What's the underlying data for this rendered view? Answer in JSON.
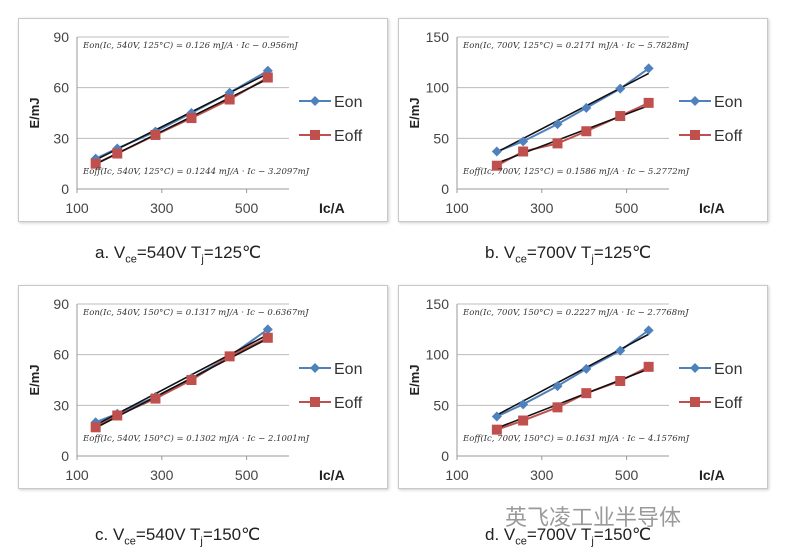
{
  "chart_data": [
    {
      "type": "line",
      "panel": "a",
      "caption": {
        "prefix": "a. V",
        "sub1": "ce",
        "mid": "=540V T",
        "sub2": "j",
        "suffix": "=125℃"
      },
      "xlabel": "Ic/A",
      "ylabel": "E/mJ",
      "xlim": [
        100,
        600
      ],
      "ylim": [
        0,
        90
      ],
      "xticks": [
        100,
        300,
        500
      ],
      "yticks": [
        0,
        30,
        60,
        90
      ],
      "grid": true,
      "legend": "right",
      "x": [
        144,
        195,
        285,
        370,
        460,
        550
      ],
      "series": [
        {
          "name": "Eon",
          "values": [
            18,
            24,
            34,
            45,
            57,
            70
          ],
          "color": "#4f81bd",
          "marker": "diamond"
        },
        {
          "name": "Eoff",
          "values": [
            15,
            21,
            32,
            42,
            53,
            66
          ],
          "color": "#c0504d",
          "marker": "square"
        }
      ],
      "fits": [
        {
          "slope": 0.126,
          "intercept": -0.956,
          "label": "Eon(Ic, 540V, 125°C) = 0.126 mJ/A · Ic − 0.956mJ"
        },
        {
          "slope": 0.1244,
          "intercept": -3.2097,
          "label": "Eoff(Ic, 540V, 125°C) = 0.1244 mJ/A · Ic − 3.2097mJ"
        }
      ]
    },
    {
      "type": "line",
      "panel": "b",
      "caption": {
        "prefix": "b. V",
        "sub1": "ce",
        "mid": "=700V T",
        "sub2": "j",
        "suffix": "=125℃"
      },
      "xlabel": "Ic/A",
      "ylabel": "E/mJ",
      "xlim": [
        100,
        600
      ],
      "ylim": [
        0,
        150
      ],
      "xticks": [
        100,
        300,
        500
      ],
      "yticks": [
        0,
        50,
        100,
        150
      ],
      "grid": true,
      "legend": "right",
      "x": [
        194,
        256,
        337,
        405,
        485,
        552
      ],
      "series": [
        {
          "name": "Eon",
          "values": [
            37,
            47,
            64,
            80,
            99,
            119
          ],
          "color": "#4f81bd",
          "marker": "diamond"
        },
        {
          "name": "Eoff",
          "values": [
            23,
            37,
            45,
            57,
            72,
            85
          ],
          "color": "#c0504d",
          "marker": "square"
        }
      ],
      "fits": [
        {
          "slope": 0.2171,
          "intercept": -5.7828,
          "label": "Eon(Ic, 700V, 125°C) = 0.2171 mJ/A · Ic − 5.7828mJ"
        },
        {
          "slope": 0.1586,
          "intercept": -5.2772,
          "label": "Eoff(Ic, 700V, 125°C) = 0.1586 mJ/A · Ic − 5.2772mJ"
        }
      ]
    },
    {
      "type": "line",
      "panel": "c",
      "caption": {
        "prefix": "c. V",
        "sub1": "ce",
        "mid": "=540V T",
        "sub2": "j",
        "suffix": "=150℃"
      },
      "xlabel": "Ic/A",
      "ylabel": "E/mJ",
      "xlim": [
        100,
        600
      ],
      "ylim": [
        0,
        90
      ],
      "xticks": [
        100,
        300,
        500
      ],
      "yticks": [
        0,
        30,
        60,
        90
      ],
      "grid": true,
      "legend": "right",
      "x": [
        144,
        195,
        285,
        370,
        460,
        550
      ],
      "series": [
        {
          "name": "Eon",
          "values": [
            20,
            25,
            35,
            46,
            59,
            75
          ],
          "color": "#4f81bd",
          "marker": "diamond"
        },
        {
          "name": "Eoff",
          "values": [
            17,
            24,
            34,
            45,
            59,
            70
          ],
          "color": "#c0504d",
          "marker": "square"
        }
      ],
      "fits": [
        {
          "slope": 0.1317,
          "intercept": -0.6367,
          "label": "Eon(Ic, 540V, 150°C) = 0.1317 mJ/A · Ic − 0.6367mJ"
        },
        {
          "slope": 0.1302,
          "intercept": -2.1001,
          "label": "Eoff(Ic, 540V, 150°C) = 0.1302 mJ/A · Ic − 2.1001mJ"
        }
      ]
    },
    {
      "type": "line",
      "panel": "d",
      "caption": {
        "prefix": "d. V",
        "sub1": "ce",
        "mid": "=700V T",
        "sub2": "j",
        "suffix": "=150℃"
      },
      "xlabel": "Ic/A",
      "ylabel": "E/mJ",
      "xlim": [
        100,
        600
      ],
      "ylim": [
        0,
        150
      ],
      "xticks": [
        100,
        300,
        500
      ],
      "yticks": [
        0,
        50,
        100,
        150
      ],
      "grid": true,
      "legend": "right",
      "x": [
        194,
        256,
        337,
        405,
        485,
        552
      ],
      "series": [
        {
          "name": "Eon",
          "values": [
            39,
            51,
            69,
            86,
            104,
            124
          ],
          "color": "#4f81bd",
          "marker": "diamond"
        },
        {
          "name": "Eoff",
          "values": [
            26,
            35,
            48,
            62,
            74,
            88
          ],
          "color": "#c0504d",
          "marker": "square"
        }
      ],
      "fits": [
        {
          "slope": 0.2227,
          "intercept": -2.7768,
          "label": "Eon(Ic, 700V, 150°C) = 0.2227 mJ/A · Ic − 2.7768mJ"
        },
        {
          "slope": 0.1631,
          "intercept": -4.1576,
          "label": "Eoff(Ic, 700V, 150°C) = 0.1631 mJ/A · Ic − 4.1576mJ"
        }
      ]
    }
  ],
  "watermark": "英飞凌工业半导体"
}
